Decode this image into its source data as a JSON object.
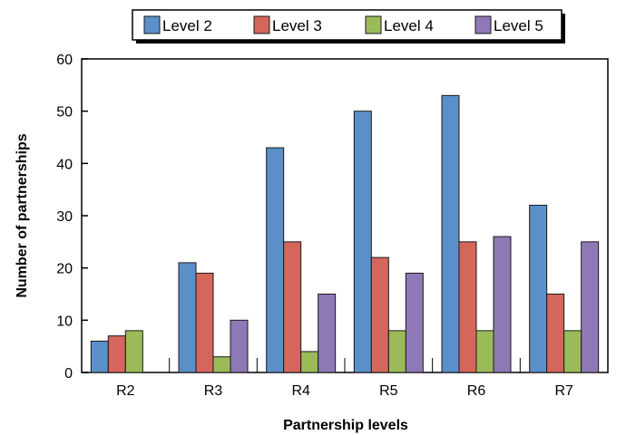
{
  "chart_data": {
    "type": "bar",
    "title": "",
    "xlabel": "Partnership levels",
    "ylabel": "Number of partnerships",
    "ylim": [
      0,
      60
    ],
    "yticks": [
      0,
      10,
      20,
      30,
      40,
      50,
      60
    ],
    "grid": false,
    "legend": "top-center",
    "categories": [
      "R2",
      "R3",
      "R4",
      "R5",
      "R6",
      "R7"
    ],
    "series": [
      {
        "name": "Level 2",
        "color": "#5b8fc9",
        "values": [
          6,
          21,
          43,
          50,
          53,
          32
        ]
      },
      {
        "name": "Level 3",
        "color": "#d4665c",
        "values": [
          7,
          19,
          25,
          22,
          25,
          15
        ]
      },
      {
        "name": "Level 4",
        "color": "#9bbb59",
        "values": [
          8,
          3,
          4,
          8,
          8,
          8
        ]
      },
      {
        "name": "Level 5",
        "color": "#8f78b6",
        "values": [
          null,
          10,
          15,
          19,
          26,
          25
        ]
      }
    ]
  }
}
